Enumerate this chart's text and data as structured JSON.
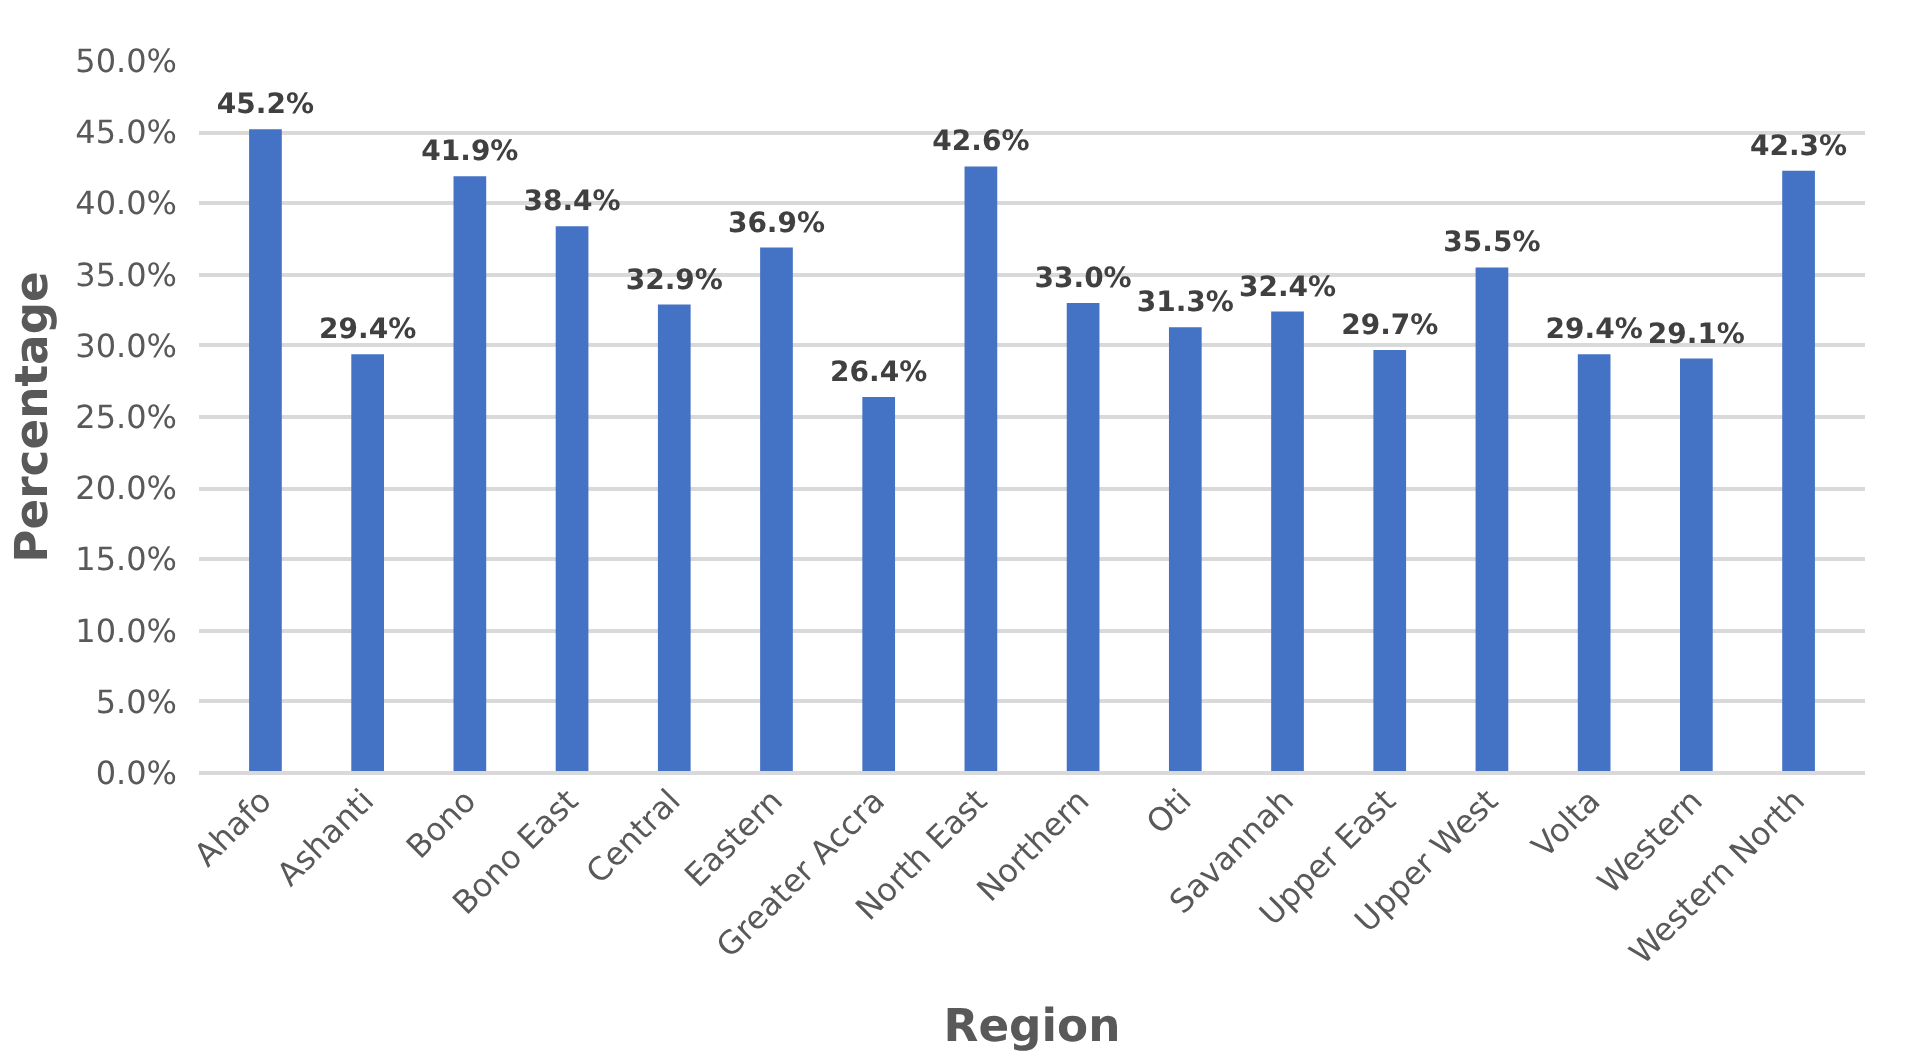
{
  "chart_data": {
    "type": "bar",
    "xlabel": "Region",
    "ylabel": "Percentage",
    "categories": [
      "Ahafo",
      "Ashanti",
      "Bono",
      "Bono East",
      "Central",
      "Eastern",
      "Greater Accra",
      "North East",
      "Northern",
      "Oti",
      "Savannah",
      "Upper East",
      "Upper West",
      "Volta",
      "Western",
      "Western North"
    ],
    "values": [
      45.2,
      29.4,
      41.9,
      38.4,
      32.9,
      36.9,
      26.4,
      42.6,
      33.0,
      31.3,
      32.4,
      29.7,
      35.5,
      29.4,
      29.1,
      42.3
    ],
    "value_labels": [
      "45.2%",
      "29.4%",
      "41.9%",
      "38.4%",
      "32.9%",
      "36.9%",
      "26.4%",
      "42.6%",
      "33.0%",
      "31.3%",
      "32.4%",
      "29.7%",
      "35.5%",
      "29.4%",
      "29.1%",
      "42.3%"
    ],
    "color": "#4472c4",
    "ylim": [
      0,
      50
    ],
    "yticks": [
      {
        "value": 0,
        "label": "0.0%"
      },
      {
        "value": 5,
        "label": "5.0%"
      },
      {
        "value": 10,
        "label": "10.0%"
      },
      {
        "value": 15,
        "label": "15.0%"
      },
      {
        "value": 20,
        "label": "20.0%"
      },
      {
        "value": 25,
        "label": "25.0%"
      },
      {
        "value": 30,
        "label": "30.0%"
      },
      {
        "value": 35,
        "label": "35.0%"
      },
      {
        "value": 40,
        "label": "40.0%"
      },
      {
        "value": 45,
        "label": "45.0%"
      },
      {
        "value": 50,
        "label": "50.0%"
      }
    ],
    "grid": "y"
  }
}
